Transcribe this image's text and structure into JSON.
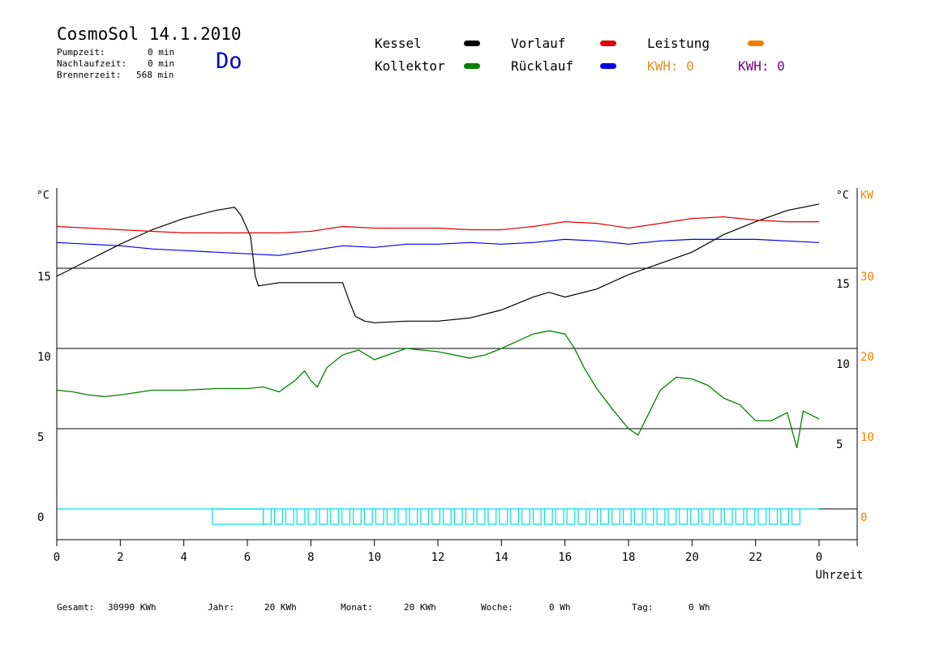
{
  "header": {
    "title": "CosmoSol 14.1.2010",
    "pumpzeit_label": "Pumpzeit:",
    "pumpzeit_value": "0 min",
    "nachlaufzeit_label": "Nachlaufzeit:",
    "nachlaufzeit_value": "0 min",
    "brennerzeit_label": "Brennerzeit:",
    "brennerzeit_value": "568 min",
    "day": "Do"
  },
  "legend": {
    "kessel": "Kessel",
    "kollektor": "Kollektor",
    "vorlauf": "Vorlauf",
    "ruecklauf": "Rücklauf",
    "leistung": "Leistung",
    "kwh1": "KWH: 0",
    "kwh2": "KWH: 0"
  },
  "colors": {
    "kessel": "#000000",
    "kollektor": "#008000",
    "vorlauf": "#e00000",
    "ruecklauf": "#0000e0",
    "leistung": "#f08000",
    "kwh2": "#800080",
    "pump": "#00e0e0",
    "day": "#0000c0"
  },
  "footer": {
    "gesamt_label": "Gesamt:",
    "gesamt_value": "30990 KWh",
    "jahr_label": "Jahr:",
    "jahr_value": "20 KWh",
    "monat_label": "Monat:",
    "monat_value": "20 KWh",
    "woche_label": "Woche:",
    "woche_value": "0 Wh",
    "tag_label": "Tag:",
    "tag_value": "0 Wh"
  },
  "chart_data": {
    "type": "line",
    "xlabel": "Uhrzeit",
    "ylabel_left": "°C",
    "ylabel_right_temp": "°C",
    "ylabel_right_power": "KW",
    "x_ticks": [
      "0",
      "2",
      "4",
      "6",
      "8",
      "10",
      "12",
      "14",
      "16",
      "18",
      "20",
      "22",
      "0"
    ],
    "y_ticks_left": [
      "15",
      "10",
      "5",
      "0"
    ],
    "y_ticks_right": [
      "15",
      "10",
      "5"
    ],
    "y_ticks_kw": [
      "30",
      "20",
      "10",
      "0"
    ],
    "xlim": [
      0,
      24
    ],
    "ylim": [
      -2,
      20
    ],
    "grid": "horizontal at 0, 5, 10, 15",
    "series": [
      {
        "name": "Kessel",
        "key": "kessel",
        "x": [
          0,
          1,
          2,
          3,
          4,
          5,
          5.6,
          5.8,
          6.1,
          6.25,
          6.35,
          7,
          8,
          9,
          9.2,
          9.4,
          9.7,
          10,
          11,
          12,
          13,
          14,
          15,
          15.5,
          16,
          17,
          18,
          19,
          20,
          21,
          22,
          23,
          24
        ],
        "values": [
          14.5,
          15.5,
          16.5,
          17.4,
          18.1,
          18.6,
          18.8,
          18.3,
          17.0,
          14.5,
          13.9,
          14.1,
          14.1,
          14.1,
          13.0,
          12.0,
          11.7,
          11.6,
          11.7,
          11.7,
          11.9,
          12.4,
          13.2,
          13.5,
          13.2,
          13.7,
          14.6,
          15.3,
          16.0,
          17.1,
          17.9,
          18.6,
          19.0
        ]
      },
      {
        "name": "Vorlauf",
        "key": "vorlauf",
        "x": [
          0,
          1,
          2,
          3,
          4,
          5,
          6,
          7,
          8,
          9,
          10,
          11,
          12,
          13,
          14,
          15,
          16,
          17,
          18,
          19,
          20,
          21,
          22,
          23,
          24
        ],
        "values": [
          17.6,
          17.5,
          17.4,
          17.3,
          17.2,
          17.2,
          17.2,
          17.2,
          17.3,
          17.6,
          17.5,
          17.5,
          17.5,
          17.4,
          17.4,
          17.6,
          17.9,
          17.8,
          17.5,
          17.8,
          18.1,
          18.2,
          18.0,
          17.9,
          17.9
        ]
      },
      {
        "name": "Rücklauf",
        "key": "ruecklauf",
        "x": [
          0,
          1,
          2,
          3,
          4,
          5,
          6,
          7,
          8,
          9,
          10,
          11,
          12,
          13,
          14,
          15,
          16,
          17,
          18,
          19,
          20,
          21,
          22,
          23,
          24
        ],
        "values": [
          16.6,
          16.5,
          16.4,
          16.2,
          16.1,
          16.0,
          15.9,
          15.8,
          16.1,
          16.4,
          16.3,
          16.5,
          16.5,
          16.6,
          16.5,
          16.6,
          16.8,
          16.7,
          16.5,
          16.7,
          16.8,
          16.8,
          16.8,
          16.7,
          16.6
        ]
      },
      {
        "name": "Kollektor",
        "key": "kollektor",
        "x": [
          0,
          0.5,
          1,
          1.5,
          2,
          3,
          4,
          5,
          6,
          6.5,
          7,
          7.5,
          7.8,
          8.0,
          8.2,
          8.5,
          9,
          9.5,
          10,
          11,
          12,
          13,
          13.5,
          14,
          15,
          15.5,
          16,
          16.3,
          16.6,
          17,
          17.5,
          18,
          18.3,
          18.5,
          19,
          19.5,
          20,
          20.5,
          21,
          21.5,
          22,
          22.5,
          23,
          23.3,
          23.5,
          24
        ],
        "values": [
          7.4,
          7.3,
          7.1,
          7.0,
          7.1,
          7.4,
          7.4,
          7.5,
          7.5,
          7.6,
          7.3,
          8.0,
          8.6,
          8.0,
          7.6,
          8.8,
          9.6,
          9.9,
          9.3,
          10.0,
          9.8,
          9.4,
          9.6,
          10.0,
          10.9,
          11.1,
          10.9,
          10.0,
          8.8,
          7.5,
          6.2,
          5.0,
          4.6,
          5.4,
          7.4,
          8.2,
          8.1,
          7.7,
          6.9,
          6.5,
          5.5,
          5.5,
          6.0,
          3.8,
          6.1,
          5.6
        ]
      }
    ],
    "pump_periods": [
      {
        "label_key": "pump",
        "x_start": 4.9,
        "x_end": 6.5,
        "values": [
          1.0
        ]
      },
      {
        "label_key": "pump",
        "x_start": 6.5,
        "x_end": 23.5,
        "values": [
          1.0
        ]
      }
    ]
  }
}
